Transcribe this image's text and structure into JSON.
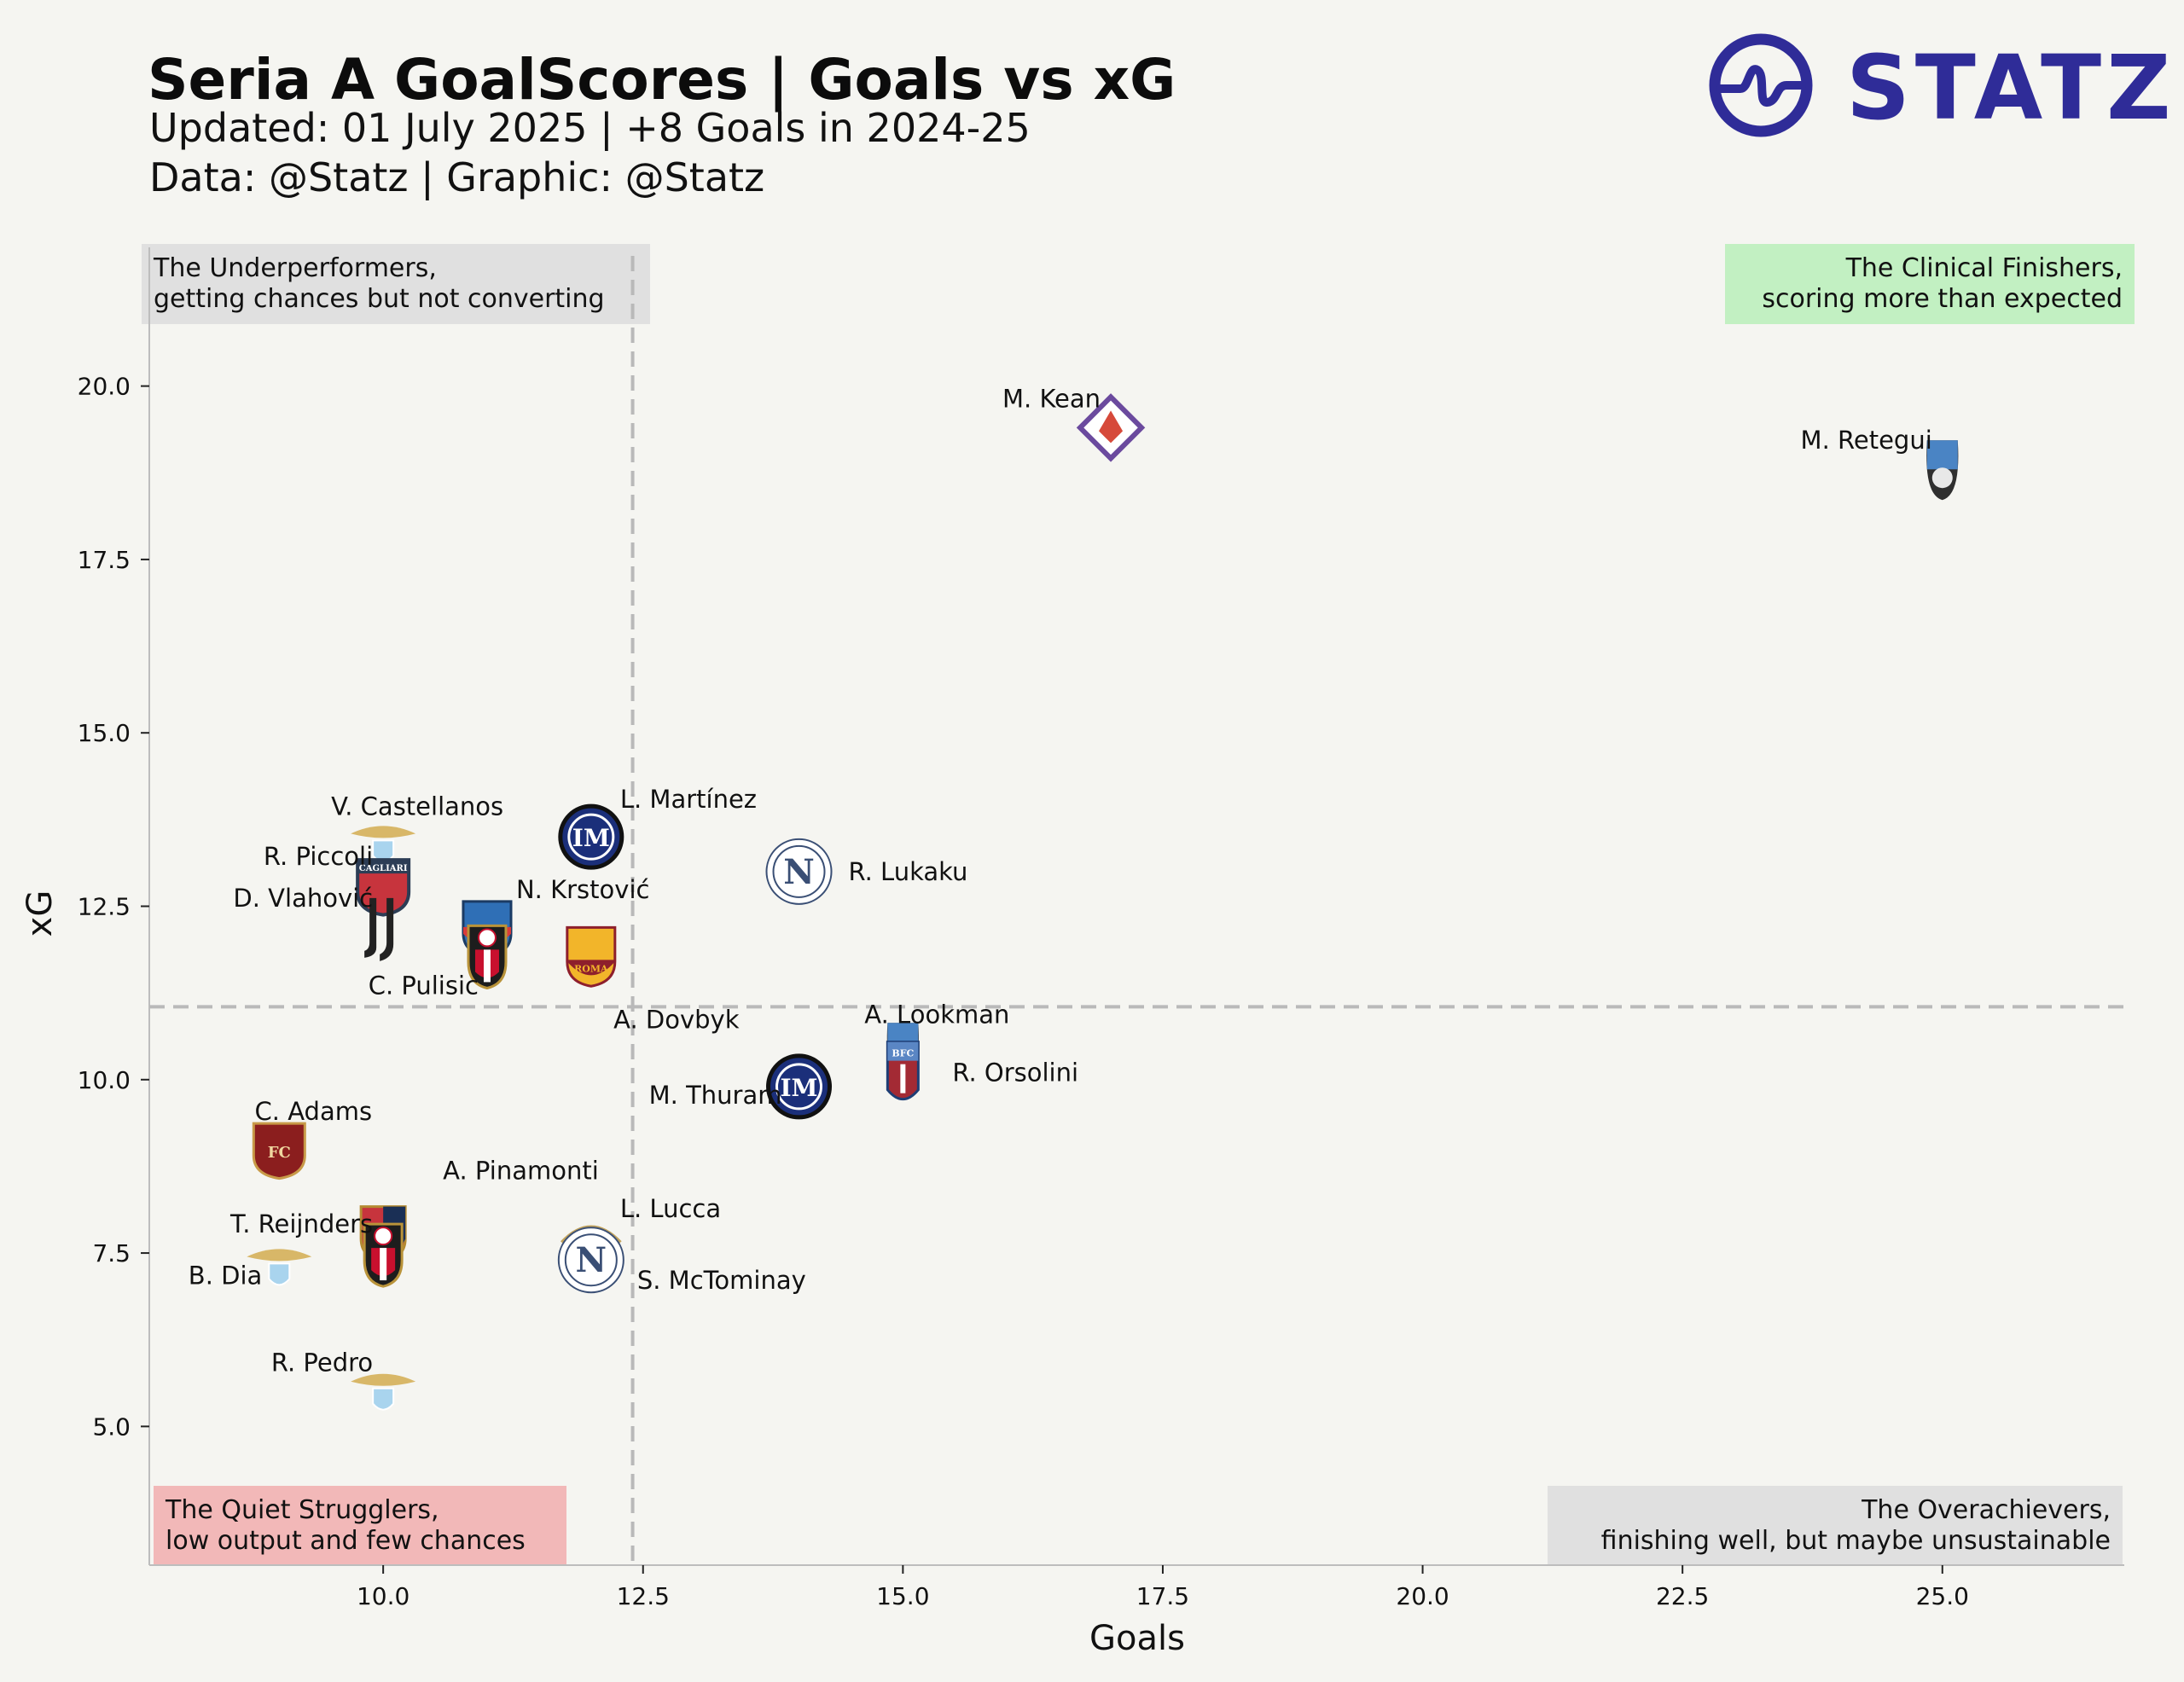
{
  "header": {
    "title": "Seria A GoalScores | Goals vs xG",
    "subtitle_1": "Updated: 01 July 2025 | +8 Goals in 2024-25",
    "subtitle_2": "Data: @Statz | Graphic: @Statz"
  },
  "brand": {
    "name": "STATZ",
    "color": "#2f2c98",
    "icon": "pulse-ring-icon"
  },
  "colors": {
    "background": "#f5f5f1",
    "reference_line": "#b9b9b9",
    "quad_underperformers": "#e0e0e0",
    "quad_clinical": "#c2f0c2",
    "quad_quiet": "#f2b8b8",
    "quad_overachievers": "#e0e0e0"
  },
  "quadrants": [
    {
      "id": "underperformers",
      "corner": "top-left",
      "lines": [
        "The Underperformers,",
        "getting chances but not converting"
      ]
    },
    {
      "id": "clinical",
      "corner": "top-right",
      "lines": [
        "The Clinical Finishers,",
        "scoring more than expected"
      ]
    },
    {
      "id": "quiet",
      "corner": "bottom-left",
      "lines": [
        "The Quiet Strugglers,",
        "low output and few chances"
      ]
    },
    {
      "id": "overachievers",
      "corner": "bottom-right",
      "lines": [
        "The Overachievers,",
        "finishing well, but maybe unsustainable"
      ]
    }
  ],
  "chart_data": {
    "type": "scatter",
    "xlabel": "Goals",
    "ylabel": "xG",
    "xlim": [
      7.75,
      26.75
    ],
    "ylim": [
      3.0,
      22.0
    ],
    "xticks": [
      10.0,
      12.5,
      15.0,
      17.5,
      20.0,
      22.5,
      25.0
    ],
    "yticks": [
      5.0,
      7.5,
      10.0,
      12.5,
      15.0,
      17.5,
      20.0
    ],
    "reference_lines": {
      "x": 12.4,
      "y": 11.05
    },
    "grid": false,
    "points": [
      {
        "player": "M. Kean",
        "goals": 17,
        "xg": 19.4,
        "club_icon": "fiorentina-crest-icon",
        "label_side": "left-up"
      },
      {
        "player": "M. Retegui",
        "goals": 25,
        "xg": 18.8,
        "club_icon": "atalanta-crest-icon",
        "label_side": "left-up"
      },
      {
        "player": "L. Martínez",
        "goals": 12,
        "xg": 13.5,
        "club_icon": "inter-crest-icon",
        "label_side": "right-up"
      },
      {
        "player": "R. Lukaku",
        "goals": 14,
        "xg": 13.0,
        "club_icon": "napoli-crest-icon",
        "label_side": "right"
      },
      {
        "player": "V. Castellanos",
        "goals": 10,
        "xg": 13.4,
        "club_icon": "lazio-crest-icon",
        "label_side": "up"
      },
      {
        "player": "R. Piccoli",
        "goals": 10,
        "xg": 12.8,
        "club_icon": "cagliari-crest-icon",
        "label_side": "left-up"
      },
      {
        "player": "D. Vlahović",
        "goals": 10,
        "xg": 12.2,
        "club_icon": "juventus-crest-icon",
        "label_side": "left-up"
      },
      {
        "player": "N. Krstović",
        "goals": 11,
        "xg": 12.2,
        "club_icon": "lecce-crest-icon",
        "label_side": "right-up"
      },
      {
        "player": "C. Pulisic",
        "goals": 11,
        "xg": 11.8,
        "club_icon": "milan-crest-icon",
        "label_side": "left-down"
      },
      {
        "player": "A. Dovbyk",
        "goals": 12,
        "xg": 11.8,
        "club_icon": "roma-crest-icon",
        "label_side": "down"
      },
      {
        "player": "A. Lookman",
        "goals": 15,
        "xg": 10.4,
        "club_icon": "atalanta-crest-icon",
        "label_side": "up"
      },
      {
        "player": "R. Orsolini",
        "goals": 15,
        "xg": 10.1,
        "club_icon": "bologna-crest-icon",
        "label_side": "right"
      },
      {
        "player": "M. Thuram",
        "goals": 14,
        "xg": 9.9,
        "club_icon": "inter-crest-icon",
        "label_side": "left"
      },
      {
        "player": "C. Adams",
        "goals": 9,
        "xg": 9.0,
        "club_icon": "torino-crest-icon",
        "label_side": "up"
      },
      {
        "player": "A. Pinamonti",
        "goals": 10,
        "xg": 7.8,
        "club_icon": "genoa-crest-icon",
        "label_side": "right-far-up"
      },
      {
        "player": "T. Reijnders",
        "goals": 10,
        "xg": 7.5,
        "club_icon": "milan-crest-icon",
        "label_side": "left-up"
      },
      {
        "player": "L. Lucca",
        "goals": 12,
        "xg": 7.6,
        "club_icon": "udinese-crest-icon",
        "label_side": "right-up"
      },
      {
        "player": "S. McTominay",
        "goals": 12,
        "xg": 7.4,
        "club_icon": "napoli-crest-icon",
        "label_side": "right-down"
      },
      {
        "player": "B. Dia",
        "goals": 9,
        "xg": 7.3,
        "club_icon": "lazio-crest-icon",
        "label_side": "left"
      },
      {
        "player": "R. Pedro",
        "goals": 10,
        "xg": 5.5,
        "club_icon": "lazio-crest-icon",
        "label_side": "left-up"
      }
    ]
  }
}
